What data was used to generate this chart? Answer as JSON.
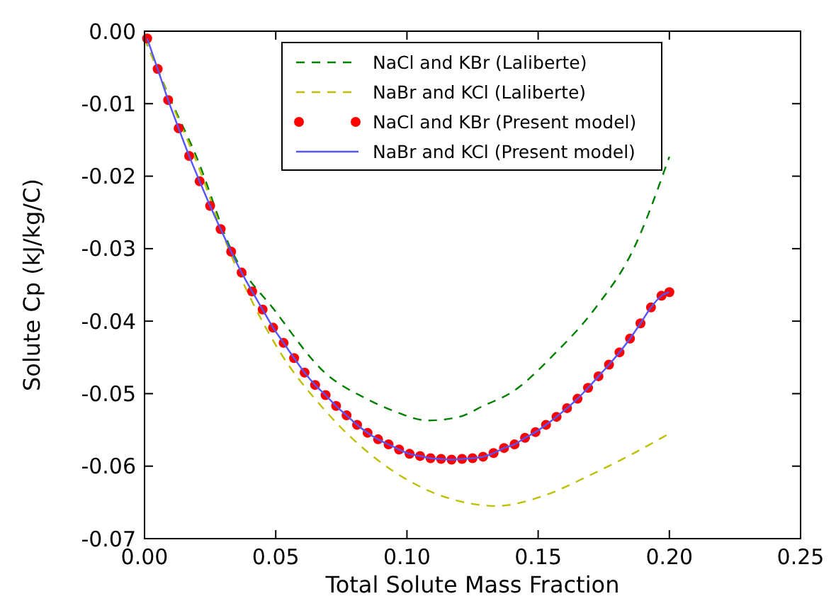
{
  "chart_data": {
    "type": "line",
    "xlabel": "Total Solute Mass Fraction",
    "ylabel": "Solute Cp (kJ/kg/C)",
    "xlim": [
      0,
      0.25
    ],
    "ylim": [
      -0.07,
      0
    ],
    "xticks": [
      {
        "value": 0,
        "label": "0.00"
      },
      {
        "value": 0.05,
        "label": "0.05"
      },
      {
        "value": 0.1,
        "label": "0.10"
      },
      {
        "value": 0.15,
        "label": "0.15"
      },
      {
        "value": 0.2,
        "label": "0.20"
      },
      {
        "value": 0.25,
        "label": "0.25"
      }
    ],
    "yticks": [
      {
        "value": -0.07,
        "label": "-0.07"
      },
      {
        "value": -0.06,
        "label": "-0.06"
      },
      {
        "value": -0.05,
        "label": "-0.05"
      },
      {
        "value": -0.04,
        "label": "-0.04"
      },
      {
        "value": -0.03,
        "label": "-0.03"
      },
      {
        "value": -0.02,
        "label": "-0.02"
      },
      {
        "value": -0.01,
        "label": "-0.01"
      },
      {
        "value": 0,
        "label": "0.00"
      }
    ],
    "grid": false,
    "legend": "top",
    "series": [
      {
        "name": "NaCl and KBr (Laliberte)",
        "line_style": "dashed",
        "color": "#008000",
        "x": [
          0,
          0.01,
          0.02,
          0.033,
          0.05,
          0.069,
          0.084,
          0.095,
          0.108,
          0.12,
          0.129,
          0.14,
          0.156,
          0.172,
          0.186,
          0.2
        ],
        "values": [
          -0.001,
          -0.0095,
          -0.0175,
          -0.0301,
          -0.0387,
          -0.0472,
          -0.0506,
          -0.0524,
          -0.0537,
          -0.0532,
          -0.0517,
          -0.0498,
          -0.0446,
          -0.0381,
          -0.0303,
          -0.0173
        ]
      },
      {
        "name": "NaBr and KCl (Laliberte)",
        "line_style": "dashed",
        "color": "#bfbf00",
        "x": [
          0,
          0.01,
          0.02,
          0.033,
          0.05,
          0.069,
          0.089,
          0.109,
          0.129,
          0.134,
          0.152,
          0.17,
          0.186,
          0.2
        ],
        "values": [
          -0.001,
          -0.0097,
          -0.0182,
          -0.0309,
          -0.0433,
          -0.0524,
          -0.0592,
          -0.0635,
          -0.0654,
          -0.0655,
          -0.0641,
          -0.0612,
          -0.0583,
          -0.0555
        ]
      },
      {
        "name": "NaCl and KBr (Present model)",
        "type": "scatter",
        "marker": "circle",
        "color": "#ff0000",
        "x": [
          0.001,
          0.005,
          0.009,
          0.013,
          0.017,
          0.021,
          0.025,
          0.029,
          0.033,
          0.037,
          0.041,
          0.045,
          0.049,
          0.053,
          0.057,
          0.061,
          0.065,
          0.069,
          0.073,
          0.077,
          0.081,
          0.085,
          0.089,
          0.093,
          0.097,
          0.101,
          0.105,
          0.109,
          0.113,
          0.117,
          0.121,
          0.125,
          0.129,
          0.133,
          0.137,
          0.141,
          0.145,
          0.149,
          0.153,
          0.157,
          0.161,
          0.165,
          0.169,
          0.173,
          0.177,
          0.181,
          0.185,
          0.189,
          0.193,
          0.197,
          0.2
        ],
        "values": [
          -0.001,
          -0.0052,
          -0.0095,
          -0.0134,
          -0.0172,
          -0.0207,
          -0.0241,
          -0.0273,
          -0.0304,
          -0.0333,
          -0.0359,
          -0.0384,
          -0.0409,
          -0.043,
          -0.0451,
          -0.0471,
          -0.0488,
          -0.0502,
          -0.0517,
          -0.053,
          -0.0543,
          -0.0554,
          -0.0563,
          -0.057,
          -0.0577,
          -0.0583,
          -0.0586,
          -0.0589,
          -0.059,
          -0.0591,
          -0.059,
          -0.0589,
          -0.0587,
          -0.0582,
          -0.0575,
          -0.057,
          -0.0561,
          -0.0553,
          -0.0543,
          -0.0532,
          -0.052,
          -0.0507,
          -0.0492,
          -0.0476,
          -0.046,
          -0.0443,
          -0.0424,
          -0.0403,
          -0.0381,
          -0.0365,
          -0.036
        ]
      },
      {
        "name": "NaBr and KCl (Present model)",
        "line_style": "solid",
        "color": "#5555ff",
        "x": [
          0.001,
          0.005,
          0.009,
          0.013,
          0.017,
          0.021,
          0.025,
          0.029,
          0.033,
          0.037,
          0.041,
          0.045,
          0.049,
          0.053,
          0.057,
          0.061,
          0.065,
          0.069,
          0.073,
          0.077,
          0.081,
          0.085,
          0.089,
          0.093,
          0.097,
          0.101,
          0.105,
          0.109,
          0.113,
          0.117,
          0.121,
          0.125,
          0.129,
          0.133,
          0.137,
          0.141,
          0.145,
          0.149,
          0.153,
          0.157,
          0.161,
          0.165,
          0.169,
          0.173,
          0.177,
          0.181,
          0.185,
          0.189,
          0.193,
          0.197,
          0.2
        ],
        "values": [
          -0.001,
          -0.0052,
          -0.0095,
          -0.0134,
          -0.0172,
          -0.0207,
          -0.0241,
          -0.0273,
          -0.0304,
          -0.0333,
          -0.0359,
          -0.0384,
          -0.0409,
          -0.043,
          -0.0451,
          -0.0471,
          -0.0488,
          -0.0502,
          -0.0517,
          -0.053,
          -0.0543,
          -0.0554,
          -0.0563,
          -0.057,
          -0.0577,
          -0.0583,
          -0.0586,
          -0.0589,
          -0.059,
          -0.0591,
          -0.059,
          -0.0589,
          -0.0587,
          -0.0582,
          -0.0575,
          -0.057,
          -0.0561,
          -0.0553,
          -0.0543,
          -0.0532,
          -0.052,
          -0.0507,
          -0.0492,
          -0.0476,
          -0.046,
          -0.0443,
          -0.0424,
          -0.0403,
          -0.0381,
          -0.0365,
          -0.036
        ]
      }
    ]
  }
}
